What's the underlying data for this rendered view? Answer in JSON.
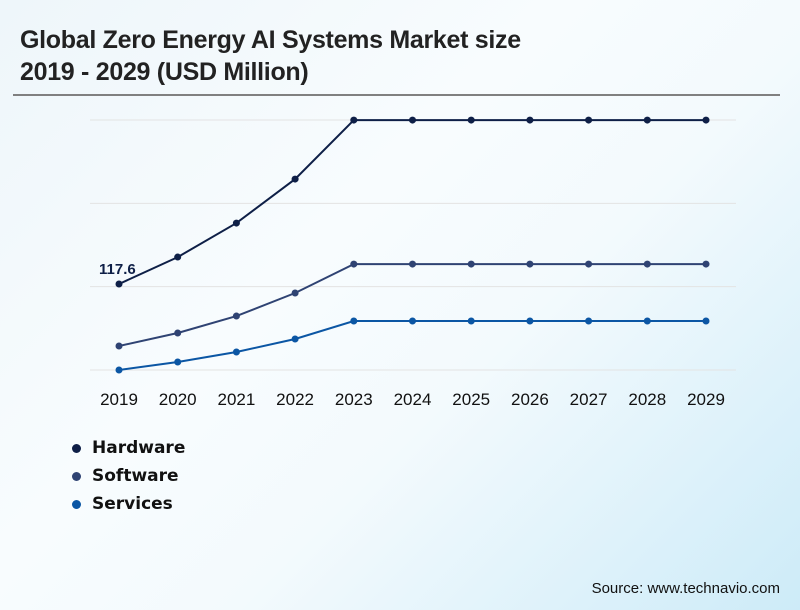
{
  "title_line1": "Global Zero Energy AI Systems Market size",
  "title_line2": "2019 - 2029 (USD Million)",
  "source": "Source: www.technavio.com",
  "chart_data": {
    "type": "line",
    "title": "Global Zero Energy AI Systems Market size 2019 - 2029 (USD Million)",
    "xlabel": "",
    "ylabel": "USD Million",
    "x": [
      "2019",
      "2020",
      "2021",
      "2022",
      "2023",
      "2024",
      "2025",
      "2026",
      "2027",
      "2028",
      "2029"
    ],
    "ylim": [
      0,
      342
    ],
    "grid": true,
    "legend_position": "bottom-left",
    "series": [
      {
        "name": "Hardware",
        "color": "#0e1f47",
        "values": [
          117.6,
          154.5,
          201.0,
          261.2,
          341.9,
          341.9,
          341.9,
          341.9,
          341.9,
          341.9,
          341.9
        ]
      },
      {
        "name": "Software",
        "color": "#2f4373",
        "values": [
          32.8,
          50.6,
          73.8,
          105.3,
          144.9,
          144.9,
          144.9,
          144.9,
          144.9,
          144.9,
          144.9
        ]
      },
      {
        "name": "Services",
        "color": "#0b56a4",
        "values": [
          0.0,
          10.9,
          24.6,
          42.4,
          67.0,
          67.0,
          67.0,
          67.0,
          67.0,
          67.0,
          67.0
        ]
      }
    ],
    "gridlines": [
      0,
      114,
      228,
      342
    ],
    "annotations": [
      {
        "series": "Hardware",
        "x": "2019",
        "text": "117.6"
      }
    ]
  }
}
